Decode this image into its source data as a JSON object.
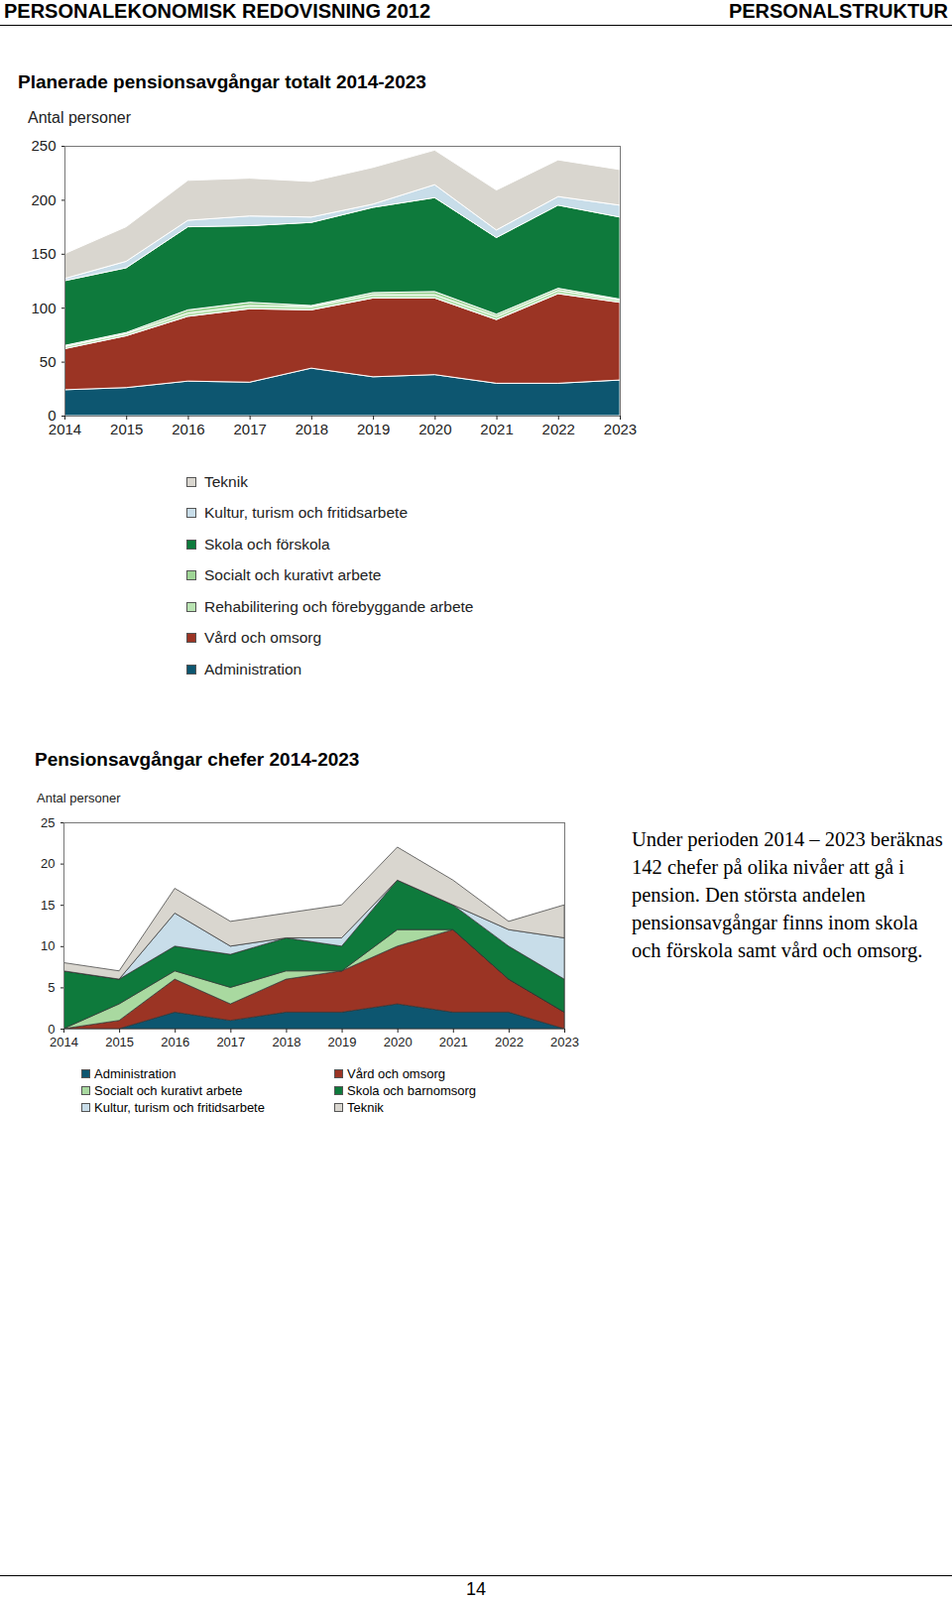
{
  "header": {
    "left": "PERSONALEKONOMISK REDOVISNING 2012",
    "right": "PERSONALSTRUKTUR"
  },
  "chart_data": [
    {
      "type": "area",
      "stacked": true,
      "title": "Planerade pensionsavgångar totalt 2014-2023",
      "ylabel": "Antal personer",
      "x": [
        2014,
        2015,
        2016,
        2017,
        2018,
        2019,
        2020,
        2021,
        2022,
        2023
      ],
      "xlim": [
        2014,
        2023
      ],
      "xticks": [
        2014,
        2015,
        2016,
        2017,
        2018,
        2019,
        2020,
        2021,
        2022,
        2023
      ],
      "ylim": [
        0,
        250
      ],
      "yticks": [
        0,
        50,
        100,
        150,
        200,
        250
      ],
      "grid": false,
      "legend": "bottom",
      "series": [
        {
          "name": "Administration",
          "color": "#0d5670",
          "values": [
            24,
            26,
            32,
            31,
            44,
            36,
            38,
            30,
            30,
            33
          ]
        },
        {
          "name": "Vård och omsorg",
          "color": "#9b3424",
          "values": [
            38,
            48,
            60,
            68,
            54,
            73,
            71,
            59,
            83,
            72
          ]
        },
        {
          "name": "Rehabilitering och förebyggande arbete",
          "color": "#b9e3b2",
          "values": [
            2,
            2,
            3,
            3,
            3,
            3,
            3,
            3,
            3,
            2
          ]
        },
        {
          "name": "Socialt och kurativt arbete",
          "color": "#9fd596",
          "values": [
            1,
            1,
            3,
            3,
            1,
            2,
            3,
            2,
            2,
            1
          ]
        },
        {
          "name": "Skola och förskola",
          "color": "#0e7a3c",
          "values": [
            60,
            60,
            77,
            71,
            77,
            79,
            87,
            71,
            77,
            76
          ]
        },
        {
          "name": "Kultur, turism och fritidsarbete",
          "color": "#c8dde9",
          "values": [
            2,
            6,
            6,
            9,
            5,
            3,
            12,
            7,
            8,
            11
          ]
        },
        {
          "name": "Teknik",
          "color": "#d9d6cf",
          "values": [
            23,
            32,
            37,
            35,
            33,
            34,
            32,
            37,
            34,
            33
          ]
        }
      ]
    },
    {
      "type": "area",
      "stacked": true,
      "title": "Pensionsavgångar chefer 2014-2023",
      "ylabel": "Antal personer",
      "x": [
        2014,
        2015,
        2016,
        2017,
        2018,
        2019,
        2020,
        2021,
        2022,
        2023
      ],
      "xlim": [
        2014,
        2023
      ],
      "xticks": [
        2014,
        2015,
        2016,
        2017,
        2018,
        2019,
        2020,
        2021,
        2022,
        2023
      ],
      "ylim": [
        0,
        25
      ],
      "yticks": [
        0,
        5,
        10,
        15,
        20,
        25
      ],
      "grid": false,
      "legend": "bottom",
      "series": [
        {
          "name": "Administration",
          "color": "#0d5670",
          "values": [
            0,
            0,
            2,
            1,
            2,
            2,
            3,
            2,
            2,
            0
          ]
        },
        {
          "name": "Vård och omsorg",
          "color": "#9b3424",
          "values": [
            0,
            1,
            4,
            2,
            4,
            5,
            7,
            10,
            4,
            2
          ]
        },
        {
          "name": "Socialt och kurativt arbete",
          "color": "#a9d9a0",
          "values": [
            0,
            2,
            1,
            2,
            1,
            0,
            2,
            0,
            0,
            0
          ]
        },
        {
          "name": "Skola och barnomsorg",
          "color": "#0e7a3c",
          "values": [
            7,
            3,
            3,
            4,
            4,
            3,
            6,
            3,
            4,
            4
          ]
        },
        {
          "name": "Kultur, turism och fritidsarbete",
          "color": "#c8dde9",
          "values": [
            0,
            0,
            4,
            1,
            0,
            1,
            0,
            0,
            2,
            5
          ]
        },
        {
          "name": "Teknik",
          "color": "#d9d6cf",
          "values": [
            1,
            1,
            3,
            3,
            3,
            4,
            4,
            3,
            1,
            4
          ]
        }
      ]
    }
  ],
  "text": "Under perioden 2014 – 2023 beräknas 142 chefer på olika nivåer att gå i pension. Den största andelen pensionsavgångar finns inom skola och förskola samt vård och omsorg.",
  "page_number": "14"
}
